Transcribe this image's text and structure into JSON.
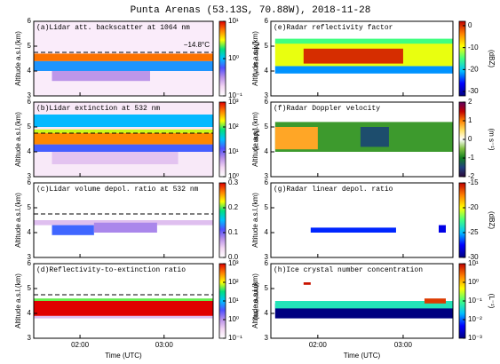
{
  "title": "Punta Arenas (53.13S, 70.88W), 2018-11-28",
  "chart_data": [
    {
      "type": "heatmap",
      "title": "(a)Lidar att. backscatter at 1064 nm",
      "ylabel": "Altitude a.s.l.(km)",
      "xlim": [
        87,
        215
      ],
      "xticks": [
        120,
        180
      ],
      "ylim": [
        3,
        6
      ],
      "yticks": [
        3,
        4,
        5,
        6
      ],
      "clog": true,
      "clim": [
        0.1,
        10
      ],
      "cticks": [
        {
          "value": 0.1,
          "label": "10⁻¹"
        },
        {
          "value": 1,
          "label": "10⁰"
        },
        {
          "value": 10,
          "label": "10¹"
        }
      ],
      "cunit": "(Mm⁻¹sr⁻¹)",
      "colormap": [
        "#ffffff",
        "#f3d6f3",
        "#b890e8",
        "#5050ff",
        "#00c0ff",
        "#00e080",
        "#ffff00",
        "#ff8000",
        "#e00000"
      ],
      "dashed_line": 4.75,
      "annotation": "−14.8°C",
      "regions": [
        [
          87,
          215,
          3,
          6,
          0.13
        ],
        [
          87,
          215,
          4.0,
          4.4,
          0.8
        ],
        [
          100,
          170,
          3.6,
          4.0,
          0.3
        ],
        [
          87,
          215,
          4.4,
          4.7,
          6
        ]
      ]
    },
    {
      "type": "heatmap",
      "title": "(b)Lidar extinction at 532 nm",
      "ylabel": "Altitude a.s.l.(km)",
      "xlim": [
        87,
        215
      ],
      "xticks": [
        120,
        180
      ],
      "ylim": [
        3,
        6
      ],
      "yticks": [
        3,
        4,
        5,
        6
      ],
      "clog": true,
      "clim": [
        1,
        1000
      ],
      "cticks": [
        {
          "value": 1,
          "label": "10⁰"
        },
        {
          "value": 10,
          "label": "10¹"
        },
        {
          "value": 100,
          "label": "10²"
        },
        {
          "value": 1000,
          "label": "10³"
        }
      ],
      "cunit": "(Mm⁻¹)",
      "colormap": [
        "#ffffff",
        "#f3d6f3",
        "#b890e8",
        "#5050ff",
        "#00c0ff",
        "#00e080",
        "#ffff00",
        "#ff8000",
        "#e00000"
      ],
      "dashed_line": 4.75,
      "regions": [
        [
          87,
          215,
          3,
          6,
          1.6
        ],
        [
          100,
          190,
          3.5,
          4.0,
          3
        ],
        [
          87,
          215,
          4.0,
          4.3,
          15
        ],
        [
          87,
          215,
          5.0,
          5.5,
          30
        ],
        [
          87,
          215,
          4.75,
          4.9,
          150
        ],
        [
          87,
          215,
          4.3,
          4.75,
          400
        ]
      ]
    },
    {
      "type": "heatmap",
      "title": "(c)Lidar volume depol. ratio at 532 nm",
      "ylabel": "Altitude a.s.l.(km)",
      "xlim": [
        87,
        215
      ],
      "xticks": [
        120,
        180
      ],
      "ylim": [
        3,
        6
      ],
      "yticks": [
        3,
        4,
        5,
        6
      ],
      "clog": false,
      "clim": [
        0,
        0.3
      ],
      "cticks": [
        {
          "value": 0,
          "label": "0.0"
        },
        0.1,
        0.2,
        0.3
      ],
      "colormap": [
        "#ffffff",
        "#f3d6f3",
        "#b890e8",
        "#5050ff",
        "#00c0ff",
        "#00e080",
        "#ffff00",
        "#ff8000",
        "#e00000"
      ],
      "dashed_line": 4.75,
      "regions": [
        [
          87,
          215,
          4.3,
          4.5,
          0.05
        ],
        [
          100,
          130,
          3.9,
          4.3,
          0.12
        ],
        [
          130,
          175,
          4.0,
          4.4,
          0.08
        ]
      ]
    },
    {
      "type": "heatmap",
      "title": "(d)Reflectivity-to-extinction ratio",
      "ylabel": "Altitude a.s.l.(km)",
      "xlabel": "Time (UTC)",
      "xlim": [
        87,
        215
      ],
      "xticks": [
        {
          "value": 120,
          "label": "02:00"
        },
        {
          "value": 180,
          "label": "03:00"
        }
      ],
      "ylim": [
        3,
        6
      ],
      "yticks": [
        3,
        4,
        5,
        6
      ],
      "clog": true,
      "clim": [
        0.1,
        1000
      ],
      "cticks": [
        {
          "value": 0.1,
          "label": "10⁻¹"
        },
        {
          "value": 1,
          "label": "10⁰"
        },
        {
          "value": 10,
          "label": "10¹"
        },
        {
          "value": 100,
          "label": "10²"
        },
        {
          "value": 1000,
          "label": "10³"
        }
      ],
      "cunit": "(mm⁶m⁻³m)",
      "colormap": [
        "#ffffff",
        "#f3d6f3",
        "#b890e8",
        "#5050ff",
        "#00c0ff",
        "#00e080",
        "#ffff00",
        "#ff8000",
        "#e00000"
      ],
      "dashed_line": 4.75,
      "regions": [
        [
          87,
          215,
          3.8,
          3.9,
          0.5
        ],
        [
          87,
          215,
          4.5,
          4.6,
          50
        ],
        [
          87,
          215,
          3.9,
          4.5,
          1000
        ]
      ]
    },
    {
      "type": "heatmap",
      "title": "(e)Radar reflectivity factor",
      "ylabel": "Altitude a.s.l.(km)",
      "xlim": [
        87,
        215
      ],
      "xticks": [
        120,
        180
      ],
      "ylim": [
        3,
        6
      ],
      "yticks": [
        3,
        4,
        5,
        6
      ],
      "clog": false,
      "clim": [
        -32,
        2
      ],
      "cticks": [
        -30,
        -20,
        -10,
        0
      ],
      "cunit": "(dBZ)",
      "colormap": [
        "#000080",
        "#0000ff",
        "#00c0ff",
        "#40ff80",
        "#ffff00",
        "#ff8000",
        "#c00000"
      ],
      "regions": [
        [
          90,
          215,
          3.9,
          4.2,
          -22
        ],
        [
          90,
          215,
          4.2,
          5.2,
          -10
        ],
        [
          90,
          215,
          5.1,
          5.3,
          -15
        ],
        [
          110,
          180,
          4.3,
          4.9,
          0
        ]
      ]
    },
    {
      "type": "heatmap",
      "title": "(f)Radar Doppler velocity",
      "ylabel": "Altitude a.s.l.(km)",
      "xlim": [
        87,
        215
      ],
      "xticks": [
        120,
        180
      ],
      "ylim": [
        3,
        6
      ],
      "yticks": [
        3,
        4,
        5,
        6
      ],
      "clog": false,
      "clim": [
        -2,
        2
      ],
      "cticks": [
        -2,
        -1,
        0,
        1,
        2
      ],
      "cunit": "(m s⁻¹)",
      "colormap": [
        "#2a0a3a",
        "#204080",
        "#108020",
        "#80c040",
        "#ffffff",
        "#ffe060",
        "#ff8000",
        "#c00000",
        "#600060"
      ],
      "regions": [
        [
          90,
          215,
          4.0,
          5.2,
          -0.8
        ],
        [
          90,
          120,
          4.1,
          5.0,
          0.8
        ],
        [
          150,
          170,
          4.2,
          5.0,
          -1.4
        ]
      ]
    },
    {
      "type": "heatmap",
      "title": "(g)Radar linear depol. ratio",
      "ylabel": "Altitude a.s.l.(km)",
      "xlim": [
        87,
        215
      ],
      "xticks": [
        120,
        180
      ],
      "ylim": [
        3,
        6
      ],
      "yticks": [
        3,
        4,
        5,
        6
      ],
      "clog": false,
      "clim": [
        -30,
        -15
      ],
      "cticks": [
        -30,
        -25,
        -20,
        -15
      ],
      "cunit": "(dBZ)",
      "colormap": [
        "#000080",
        "#0000ff",
        "#00c0ff",
        "#40ff80",
        "#ffff00",
        "#ff8000",
        "#c00000"
      ],
      "regions": [
        [
          115,
          175,
          4.0,
          4.2,
          -27
        ],
        [
          205,
          210,
          4.0,
          4.3,
          -28
        ]
      ]
    },
    {
      "type": "heatmap",
      "title": "(h)Ice crystal number concentration",
      "ylabel": "Altitude a.s.l.(km)",
      "xlabel": "Time (UTC)",
      "xlim": [
        87,
        215
      ],
      "xticks": [
        {
          "value": 120,
          "label": "02:00"
        },
        {
          "value": 180,
          "label": "03:00"
        }
      ],
      "ylim": [
        3,
        6
      ],
      "yticks": [
        3,
        4,
        5,
        6
      ],
      "clog": true,
      "clim": [
        0.001,
        10
      ],
      "cticks": [
        {
          "value": 0.001,
          "label": "10⁻³"
        },
        {
          "value": 0.01,
          "label": "10⁻²"
        },
        {
          "value": 0.1,
          "label": "10⁻¹"
        },
        {
          "value": 1,
          "label": "10⁰"
        },
        {
          "value": 10,
          "label": "10¹"
        }
      ],
      "cunit": "(L⁻¹)",
      "colormap": [
        "#000080",
        "#0000ff",
        "#00c0ff",
        "#40ff80",
        "#ffff00",
        "#ff8000",
        "#c00000"
      ],
      "regions": [
        [
          90,
          215,
          3.8,
          4.4,
          0.001
        ],
        [
          90,
          215,
          4.2,
          4.5,
          0.05
        ],
        [
          195,
          210,
          4.4,
          4.6,
          5
        ],
        [
          110,
          115,
          5.15,
          5.25,
          8
        ]
      ]
    }
  ]
}
